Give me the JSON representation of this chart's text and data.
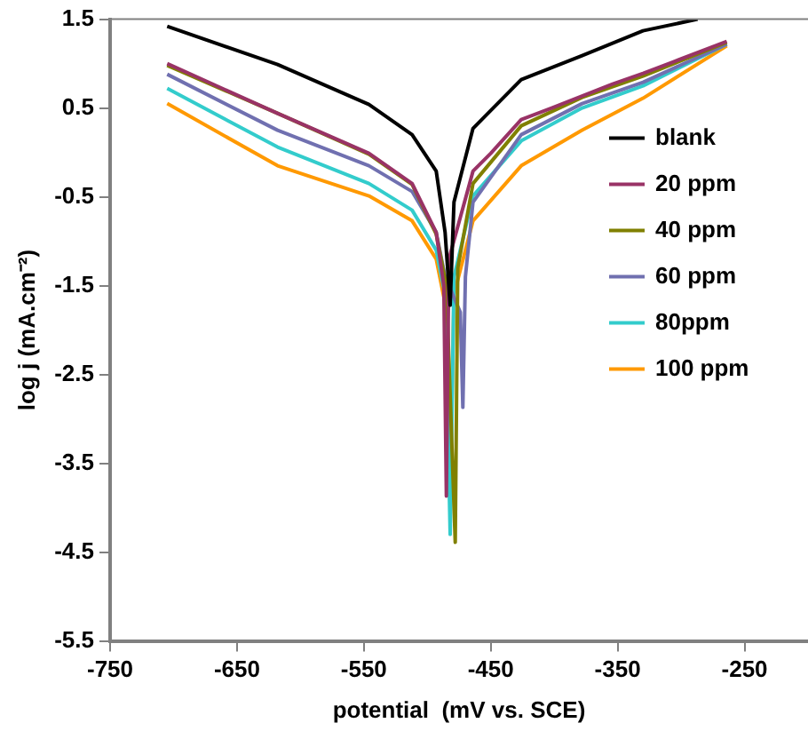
{
  "chart_data": {
    "type": "line",
    "xlabel": "potential  (mV vs. SCE)",
    "ylabel": "log j (mA.cm⁻²)",
    "xlim": [
      -750,
      -200
    ],
    "xticks": [
      -750,
      -650,
      -550,
      -450,
      -350,
      -250
    ],
    "ylim": [
      -5.5,
      1.5
    ],
    "yticks": [
      -5.5,
      -4.5,
      -3.5,
      -2.5,
      -1.5,
      -0.5,
      0.5,
      1.5
    ],
    "grid": false,
    "legend": "right",
    "marker": "none",
    "line_style": "solid",
    "series": [
      {
        "name": "blank",
        "color": "#000000",
        "x": [
          -705,
          -618,
          -546,
          -512,
          -493,
          -486,
          -482,
          -479,
          -464,
          -426,
          -378,
          -330,
          -287
        ],
        "values": [
          1.42,
          0.99,
          0.54,
          0.2,
          -0.21,
          -0.9,
          -1.72,
          -0.56,
          0.27,
          0.82,
          1.09,
          1.37,
          1.5
        ]
      },
      {
        "name": "20 ppm",
        "color": "#993366",
        "x": [
          -705,
          -618,
          -546,
          -512,
          -493,
          -487,
          -485,
          -483,
          -464,
          -450,
          -426,
          -402,
          -354,
          -330,
          -306,
          -264
        ],
        "values": [
          1.0,
          0.44,
          -0.01,
          -0.35,
          -0.9,
          -1.5,
          -3.87,
          -1.2,
          -0.21,
          -0.01,
          0.37,
          0.5,
          0.77,
          0.89,
          1.02,
          1.25
        ]
      },
      {
        "name": "40 ppm",
        "color": "#808000",
        "x": [
          -705,
          -618,
          -546,
          -512,
          -493,
          -485,
          -478,
          -476,
          -464,
          -426,
          -378,
          -330,
          -264
        ],
        "values": [
          0.98,
          0.44,
          -0.02,
          -0.36,
          -0.92,
          -1.5,
          -4.39,
          -1.3,
          -0.35,
          0.3,
          0.62,
          0.86,
          1.24
        ]
      },
      {
        "name": "60 ppm",
        "color": "#7070b0",
        "x": [
          -705,
          -618,
          -546,
          -512,
          -493,
          -486,
          -474,
          -472,
          -470,
          -464,
          -426,
          -378,
          -330,
          -264
        ],
        "values": [
          0.88,
          0.25,
          -0.15,
          -0.44,
          -0.9,
          -1.4,
          -1.8,
          -2.87,
          -1.4,
          -0.56,
          0.2,
          0.55,
          0.79,
          1.22
        ]
      },
      {
        "name": "80ppm",
        "color": "#33cccc",
        "x": [
          -705,
          -618,
          -546,
          -512,
          -493,
          -486,
          -482,
          -479,
          -464,
          -426,
          -378,
          -330,
          -264
        ],
        "values": [
          0.72,
          0.06,
          -0.35,
          -0.65,
          -1.1,
          -1.6,
          -4.3,
          -1.4,
          -0.49,
          0.13,
          0.5,
          0.75,
          1.22
        ]
      },
      {
        "name": "100 ppm",
        "color": "#ff9900",
        "x": [
          -705,
          -618,
          -546,
          -512,
          -493,
          -486,
          -482,
          -479,
          -464,
          -426,
          -378,
          -330,
          -264
        ],
        "values": [
          0.55,
          -0.15,
          -0.49,
          -0.77,
          -1.2,
          -1.7,
          -3.87,
          -1.6,
          -0.77,
          -0.15,
          0.25,
          0.61,
          1.2
        ]
      }
    ]
  }
}
